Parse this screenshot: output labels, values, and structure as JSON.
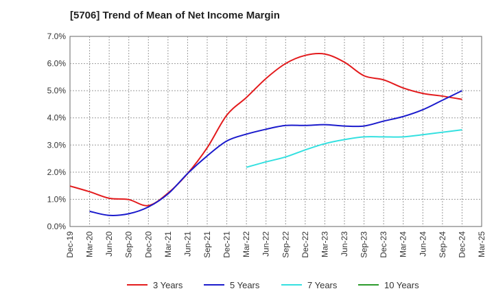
{
  "chart_data": {
    "type": "line",
    "title": "[5706]  Trend of Mean of Net Income Margin",
    "xlabel": "",
    "ylabel": "",
    "x": [
      "Dec-19",
      "Mar-20",
      "Jun-20",
      "Sep-20",
      "Dec-20",
      "Mar-21",
      "Jun-21",
      "Sep-21",
      "Dec-21",
      "Mar-22",
      "Jun-22",
      "Sep-22",
      "Dec-22",
      "Mar-23",
      "Jun-23",
      "Sep-23",
      "Dec-23",
      "Mar-24",
      "Jun-24",
      "Sep-24",
      "Dec-24",
      "Mar-25"
    ],
    "ylim": [
      0,
      7.0
    ],
    "yticks": [
      "0.0%",
      "1.0%",
      "2.0%",
      "3.0%",
      "4.0%",
      "5.0%",
      "6.0%",
      "7.0%"
    ],
    "grid": true,
    "legend_position": "bottom",
    "series": [
      {
        "name": "3 Years",
        "color": "#e31a1c",
        "values": [
          1.49,
          1.28,
          1.04,
          0.99,
          0.77,
          1.23,
          1.95,
          2.9,
          4.1,
          4.75,
          5.45,
          6.0,
          6.3,
          6.35,
          6.05,
          5.55,
          5.4,
          5.1,
          4.9,
          4.8,
          4.68,
          null
        ]
      },
      {
        "name": "5 Years",
        "color": "#1a1acc",
        "values": [
          null,
          0.56,
          0.41,
          0.47,
          0.72,
          1.2,
          1.95,
          2.6,
          3.15,
          3.4,
          3.58,
          3.72,
          3.72,
          3.75,
          3.7,
          3.7,
          3.88,
          4.05,
          4.3,
          4.65,
          5.0,
          null
        ]
      },
      {
        "name": "7 Years",
        "color": "#33e0e0",
        "values": [
          null,
          null,
          null,
          null,
          null,
          null,
          null,
          null,
          null,
          2.18,
          2.38,
          2.56,
          2.82,
          3.05,
          3.2,
          3.3,
          3.3,
          3.3,
          3.38,
          3.47,
          3.56,
          null
        ]
      },
      {
        "name": "10 Years",
        "color": "#2a9a2a",
        "values": [
          null,
          null,
          null,
          null,
          null,
          null,
          null,
          null,
          null,
          null,
          null,
          null,
          null,
          null,
          null,
          null,
          null,
          null,
          null,
          null,
          null,
          null
        ]
      }
    ]
  }
}
